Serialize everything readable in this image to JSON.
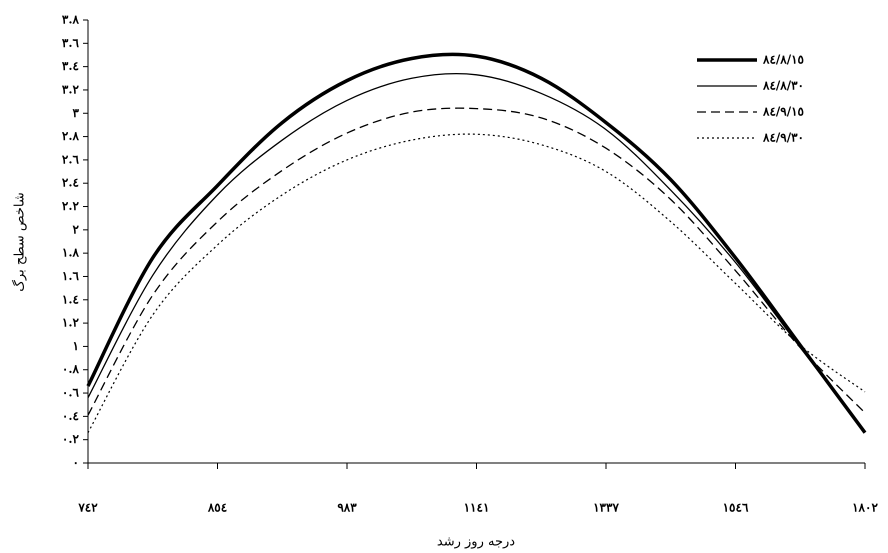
{
  "chart_data": {
    "type": "line",
    "x_label": "درجه روز رشد",
    "y_label": "شاخص سطح برگ",
    "categories": [
      "٧٤٢",
      null,
      "٨٥٤",
      null,
      "٩٨٣",
      null,
      "١١٤١",
      null,
      "١٣٣٧",
      null,
      "١٥٤٦",
      null,
      "١٨٠٢"
    ],
    "ylim": [
      0,
      3.8
    ],
    "yticks": [
      {
        "value": 0,
        "label": "٠"
      },
      {
        "value": 0.2,
        "label": "٠.٢"
      },
      {
        "value": 0.4,
        "label": "٠.٤"
      },
      {
        "value": 0.6,
        "label": "٠.٦"
      },
      {
        "value": 0.8,
        "label": "٠.٨"
      },
      {
        "value": 1,
        "label": "١"
      },
      {
        "value": 1.2,
        "label": "١.٢"
      },
      {
        "value": 1.4,
        "label": "١.٤"
      },
      {
        "value": 1.6,
        "label": "١.٦"
      },
      {
        "value": 1.8,
        "label": "١.٨"
      },
      {
        "value": 2,
        "label": "٢"
      },
      {
        "value": 2.2,
        "label": "٢.٢"
      },
      {
        "value": 2.4,
        "label": "٢.٤"
      },
      {
        "value": 2.6,
        "label": "٢.٦"
      },
      {
        "value": 2.8,
        "label": "٢.٨"
      },
      {
        "value": 3,
        "label": "٣"
      },
      {
        "value": 3.2,
        "label": "٣.٢"
      },
      {
        "value": 3.4,
        "label": "٣.٤"
      },
      {
        "value": 3.6,
        "label": "٣.٦"
      },
      {
        "value": 3.8,
        "label": "٣.٨"
      }
    ],
    "grid": false,
    "legend": "upper-right",
    "series": [
      {
        "name": "٨٤/٨/١٥",
        "color": "#000000",
        "style": "bold",
        "values": [
          0.66,
          1.76,
          2.38,
          2.92,
          3.28,
          3.47,
          3.49,
          3.3,
          2.92,
          2.43,
          1.76,
          1.01,
          0.26
        ]
      },
      {
        "name": "٨٤/٨/٣٠",
        "color": "#000000",
        "style": "solid",
        "values": [
          0.56,
          1.61,
          2.3,
          2.77,
          3.11,
          3.3,
          3.33,
          3.17,
          2.86,
          2.34,
          1.72,
          0.99,
          0.27
        ]
      },
      {
        "name": "٨٤/٩/١٥",
        "color": "#000000",
        "style": "dashed",
        "values": [
          0.41,
          1.44,
          2.07,
          2.51,
          2.83,
          3.01,
          3.04,
          2.96,
          2.7,
          2.26,
          1.65,
          0.99,
          0.43
        ]
      },
      {
        "name": "٨٤/٩/٣٠",
        "color": "#000000",
        "style": "dotted",
        "values": [
          0.26,
          1.27,
          1.87,
          2.3,
          2.6,
          2.77,
          2.82,
          2.73,
          2.5,
          2.07,
          1.54,
          1.01,
          0.61
        ]
      }
    ]
  }
}
